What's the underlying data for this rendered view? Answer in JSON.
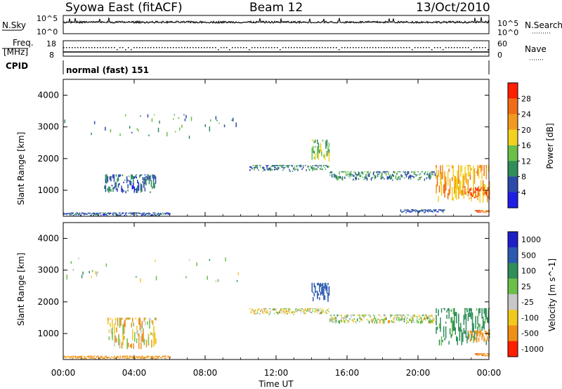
{
  "header": {
    "station": "Syowa East (fitACF)",
    "beam": "Beam 12",
    "date": "13/Oct/2010"
  },
  "noise_panel": {
    "left_label": "N.Sky",
    "left_tick_hi": "10^5",
    "left_tick_lo": "10^0",
    "right_tick_hi": "10^5",
    "right_tick_lo": "10^0",
    "right_label": "N.Search"
  },
  "freq_panel": {
    "label1": "Freq.",
    "label2": "[MHz]",
    "tick_hi": "18",
    "tick_lo": "8",
    "right_tick_hi": "60",
    "right_tick_lo": "0",
    "right_label": "Nave"
  },
  "cpid_panel": {
    "label": "CPID",
    "program": "normal (fast) 151"
  },
  "x_axis": {
    "label": "Time UT",
    "ticks": [
      "00:00",
      "04:00",
      "08:00",
      "12:00",
      "16:00",
      "20:00",
      "00:00"
    ]
  },
  "colors": {
    "power_scale": [
      "#1f1fe6",
      "#2c4aa8",
      "#2f8e5a",
      "#6cc04a",
      "#f2d21f",
      "#f29a1f",
      "#ef6d16",
      "#ff1f00"
    ],
    "velocity_scale": [
      "#1f1fc8",
      "#2c5ab0",
      "#2f8e5a",
      "#6cc04a",
      "#c8c8c8",
      "#f2c81f",
      "#ef8f16",
      "#ff1f00"
    ]
  },
  "chart_data": [
    {
      "type": "heatmap",
      "title": "",
      "xlabel": "Time UT",
      "ylabel": "Slant Range [km]",
      "xlim_hours": [
        0,
        24
      ],
      "ylim": [
        180,
        4500
      ],
      "y_ticks": [
        "1000",
        "2000",
        "3000",
        "4000"
      ],
      "colorbar": {
        "label": "Power [dB]",
        "ticks": [
          "4",
          "8",
          "12",
          "16",
          "20",
          "24",
          "28"
        ],
        "range": [
          0,
          30
        ]
      },
      "regions": [
        {
          "t": [
            0.0,
            6.0
          ],
          "r": [
            200,
            300
          ],
          "value": 6
        },
        {
          "t": [
            2.3,
            5.2
          ],
          "r": [
            900,
            1500
          ],
          "value": 7
        },
        {
          "t": [
            0.0,
            10.0
          ],
          "r": [
            2600,
            3400
          ],
          "value": 10,
          "sparse": true
        },
        {
          "t": [
            10.5,
            15.0
          ],
          "r": [
            1600,
            1800
          ],
          "value": 8
        },
        {
          "t": [
            14.0,
            15.0
          ],
          "r": [
            1900,
            2600
          ],
          "value": 12
        },
        {
          "t": [
            15.0,
            21.0
          ],
          "r": [
            1300,
            1600
          ],
          "value": 9
        },
        {
          "t": [
            21.0,
            24.0
          ],
          "r": [
            600,
            1800
          ],
          "value": 20
        },
        {
          "t": [
            22.8,
            24.0
          ],
          "r": [
            700,
            1100
          ],
          "value": 26
        },
        {
          "t": [
            19.0,
            21.5
          ],
          "r": [
            300,
            400
          ],
          "value": 6
        },
        {
          "t": [
            23.2,
            24.0
          ],
          "r": [
            300,
            380
          ],
          "value": 24
        }
      ]
    },
    {
      "type": "heatmap",
      "title": "",
      "xlabel": "Time UT",
      "ylabel": "Slant Range [km]",
      "xlim_hours": [
        0,
        24
      ],
      "ylim": [
        180,
        4500
      ],
      "y_ticks": [
        "1000",
        "2000",
        "3000",
        "4000"
      ],
      "colorbar": {
        "label": "Velocity [m s^-1]",
        "ticks": [
          "1000",
          "500",
          "100",
          "25",
          "-25",
          "-100",
          "-500",
          "-1000"
        ]
      },
      "regions": [
        {
          "t": [
            0.0,
            6.0
          ],
          "r": [
            200,
            300
          ],
          "value": -200
        },
        {
          "t": [
            2.5,
            5.2
          ],
          "r": [
            500,
            1500
          ],
          "value": -60
        },
        {
          "t": [
            0.0,
            10.0
          ],
          "r": [
            2600,
            3400
          ],
          "value": 50,
          "sparse": true
        },
        {
          "t": [
            10.5,
            15.0
          ],
          "r": [
            1600,
            1800
          ],
          "value": 0
        },
        {
          "t": [
            14.0,
            15.0
          ],
          "r": [
            1900,
            2600
          ],
          "value": 600
        },
        {
          "t": [
            15.0,
            21.0
          ],
          "r": [
            1300,
            1600
          ],
          "value": 0
        },
        {
          "t": [
            21.0,
            24.0
          ],
          "r": [
            600,
            1800
          ],
          "value": 200
        },
        {
          "t": [
            22.8,
            24.0
          ],
          "r": [
            700,
            1100
          ],
          "value": -300
        },
        {
          "t": [
            23.2,
            24.0
          ],
          "r": [
            300,
            380
          ],
          "value": -400
        }
      ]
    }
  ]
}
